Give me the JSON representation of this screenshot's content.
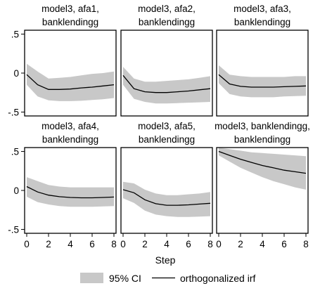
{
  "figure": {
    "x_axis_label": "Step",
    "legend": {
      "band_label": "95% CI",
      "line_label": "orthogonalized irf"
    }
  },
  "chart_data": [
    {
      "type": "area",
      "title_lines": [
        "model3, afa1,",
        "banklendingg"
      ],
      "x": [
        0,
        1,
        2,
        3,
        4,
        5,
        6,
        7,
        8
      ],
      "irf": [
        -0.02,
        -0.15,
        -0.21,
        -0.21,
        -0.205,
        -0.19,
        -0.18,
        -0.165,
        -0.15
      ],
      "lower": [
        -0.15,
        -0.3,
        -0.35,
        -0.36,
        -0.36,
        -0.355,
        -0.345,
        -0.335,
        -0.32
      ],
      "upper": [
        0.12,
        0.02,
        -0.07,
        -0.06,
        -0.05,
        -0.03,
        -0.01,
        0.0,
        0.02
      ],
      "ylim": [
        -0.55,
        0.55
      ],
      "yticks": [
        ".5",
        "0",
        "-.5"
      ],
      "xticks": [
        0,
        2,
        4,
        6,
        8
      ]
    },
    {
      "type": "area",
      "title_lines": [
        "model3, afa2,",
        "banklendingg"
      ],
      "x": [
        0,
        1,
        2,
        3,
        4,
        5,
        6,
        7,
        8
      ],
      "irf": [
        -0.03,
        -0.2,
        -0.24,
        -0.25,
        -0.25,
        -0.24,
        -0.23,
        -0.215,
        -0.2
      ],
      "lower": [
        -0.15,
        -0.33,
        -0.37,
        -0.39,
        -0.39,
        -0.385,
        -0.38,
        -0.375,
        -0.37
      ],
      "upper": [
        0.08,
        -0.07,
        -0.11,
        -0.11,
        -0.1,
        -0.09,
        -0.08,
        -0.06,
        -0.04
      ],
      "ylim": [
        -0.55,
        0.55
      ],
      "yticks": [
        ".5",
        "0",
        "-.5"
      ],
      "xticks": [
        0,
        2,
        4,
        6,
        8
      ]
    },
    {
      "type": "area",
      "title_lines": [
        "model3, afa3,",
        "banklendingg"
      ],
      "x": [
        0,
        1,
        2,
        3,
        4,
        5,
        6,
        7,
        8
      ],
      "irf": [
        -0.02,
        -0.14,
        -0.17,
        -0.18,
        -0.18,
        -0.18,
        -0.175,
        -0.17,
        -0.165
      ],
      "lower": [
        -0.13,
        -0.27,
        -0.3,
        -0.31,
        -0.31,
        -0.31,
        -0.3,
        -0.295,
        -0.29
      ],
      "upper": [
        0.1,
        -0.02,
        -0.04,
        -0.05,
        -0.05,
        -0.05,
        -0.05,
        -0.04,
        -0.04
      ],
      "ylim": [
        -0.55,
        0.55
      ],
      "yticks": [
        ".5",
        "0",
        "-.5"
      ],
      "xticks": [
        0,
        2,
        4,
        6,
        8
      ]
    },
    {
      "type": "area",
      "title_lines": [
        "model3, afa4,",
        "banklendingg"
      ],
      "x": [
        0,
        1,
        2,
        3,
        4,
        5,
        6,
        7,
        8
      ],
      "irf": [
        0.05,
        -0.02,
        -0.06,
        -0.08,
        -0.09,
        -0.095,
        -0.095,
        -0.09,
        -0.085
      ],
      "lower": [
        -0.08,
        -0.15,
        -0.18,
        -0.2,
        -0.21,
        -0.21,
        -0.21,
        -0.205,
        -0.2
      ],
      "upper": [
        0.17,
        0.12,
        0.07,
        0.05,
        0.04,
        0.04,
        0.04,
        0.04,
        0.04
      ],
      "ylim": [
        -0.55,
        0.55
      ],
      "yticks": [
        ".5",
        "0",
        "-.5"
      ],
      "xticks": [
        0,
        2,
        4,
        6,
        8
      ]
    },
    {
      "type": "area",
      "title_lines": [
        "model3, afa5,",
        "banklendingg"
      ],
      "x": [
        0,
        1,
        2,
        3,
        4,
        5,
        6,
        7,
        8
      ],
      "irf": [
        0.01,
        -0.03,
        -0.12,
        -0.17,
        -0.19,
        -0.19,
        -0.185,
        -0.175,
        -0.165
      ],
      "lower": [
        -0.1,
        -0.16,
        -0.26,
        -0.31,
        -0.33,
        -0.34,
        -0.34,
        -0.335,
        -0.33
      ],
      "upper": [
        0.11,
        0.09,
        0.01,
        -0.04,
        -0.06,
        -0.06,
        -0.05,
        -0.04,
        -0.02
      ],
      "ylim": [
        -0.55,
        0.55
      ],
      "yticks": [
        ".5",
        "0",
        "-.5"
      ],
      "xticks": [
        0,
        2,
        4,
        6,
        8
      ]
    },
    {
      "type": "area",
      "title_lines": [
        "model3, banklendingg,",
        "banklendingg"
      ],
      "x": [
        0,
        1,
        2,
        3,
        4,
        5,
        6,
        7,
        8
      ],
      "irf": [
        0.5,
        0.45,
        0.4,
        0.36,
        0.32,
        0.29,
        0.26,
        0.24,
        0.22
      ],
      "lower": [
        0.45,
        0.37,
        0.29,
        0.23,
        0.17,
        0.12,
        0.08,
        0.04,
        0.01
      ],
      "upper": [
        0.55,
        0.53,
        0.51,
        0.49,
        0.48,
        0.47,
        0.46,
        0.45,
        0.44
      ],
      "ylim": [
        -0.55,
        0.55
      ],
      "yticks": [
        ".5",
        "0",
        "-.5"
      ],
      "xticks": [
        0,
        2,
        4,
        6,
        8
      ]
    }
  ]
}
